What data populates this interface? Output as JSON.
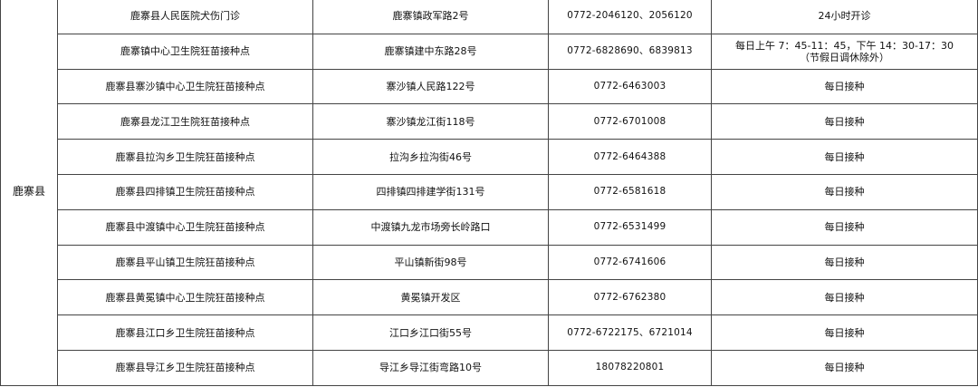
{
  "county": "鹿寨县",
  "rows": [
    {
      "name": "鹿寨县人民医院犬伤门诊",
      "address": "鹿寨镇政军路2号",
      "phone": "0772-2046120、2056120",
      "hours": "24小时开诊",
      "hours_note": ""
    },
    {
      "name": "鹿寨镇中心卫生院狂苗接种点",
      "address": "鹿寨镇建中东路28号",
      "phone": "0772-6828690、6839813",
      "hours": "每日上午 7：45-11：45，下午 14：30-17：30",
      "hours_note": "（节假日调休除外）"
    },
    {
      "name": "鹿寨县寨沙镇中心卫生院狂苗接种点",
      "address": "寨沙镇人民路122号",
      "phone": "0772-6463003",
      "hours": "每日接种",
      "hours_note": ""
    },
    {
      "name": "鹿寨县龙江卫生院狂苗接种点",
      "address": "寨沙镇龙江街118号",
      "phone": "0772-6701008",
      "hours": "每日接种",
      "hours_note": ""
    },
    {
      "name": "鹿寨县拉沟乡卫生院狂苗接种点",
      "address": "拉沟乡拉沟街46号",
      "phone": "0772-6464388",
      "hours": "每日接种",
      "hours_note": ""
    },
    {
      "name": "鹿寨县四排镇卫生院狂苗接种点",
      "address": "四排镇四排建学街131号",
      "phone": "0772-6581618",
      "hours": "每日接种",
      "hours_note": ""
    },
    {
      "name": "鹿寨县中渡镇中心卫生院狂苗接种点",
      "address": "中渡镇九龙市场旁长岭路口",
      "phone": "0772-6531499",
      "hours": "每日接种",
      "hours_note": ""
    },
    {
      "name": "鹿寨县平山镇卫生院狂苗接种点",
      "address": "平山镇新街98号",
      "phone": "0772-6741606",
      "hours": "每日接种",
      "hours_note": ""
    },
    {
      "name": "鹿寨县黄冕镇中心卫生院狂苗接种点",
      "address": "黄冕镇开发区",
      "phone": "0772-6762380",
      "hours": "每日接种",
      "hours_note": ""
    },
    {
      "name": "鹿寨县江口乡卫生院狂苗接种点",
      "address": "江口乡江口街55号",
      "phone": "0772-6722175、6721014",
      "hours": "每日接种",
      "hours_note": ""
    },
    {
      "name": "鹿寨县导江乡卫生院狂苗接种点",
      "address": "导江乡导江街弯路10号",
      "phone": "18078220801",
      "hours": "每日接种",
      "hours_note": ""
    }
  ]
}
